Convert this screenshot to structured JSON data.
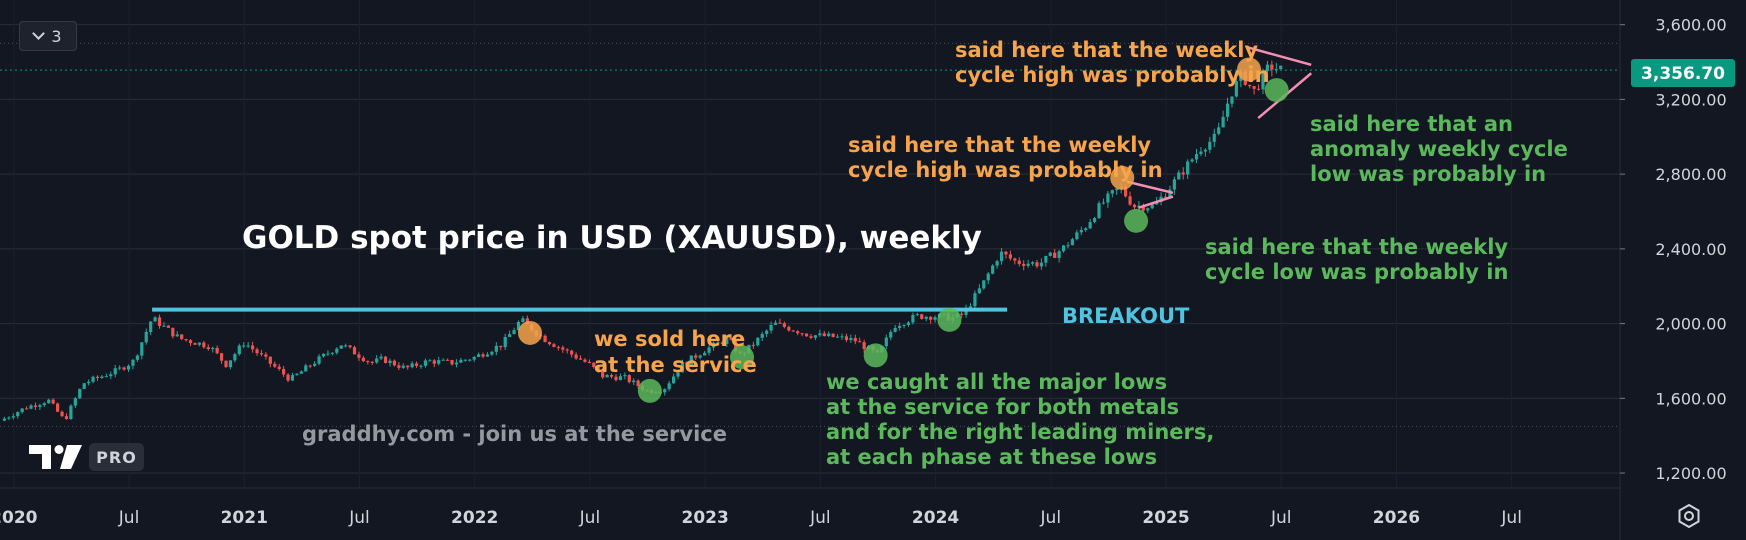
{
  "toolbar": {
    "collapse_count": "3"
  },
  "branding": {
    "logo_badge": "PRO",
    "logo_text": "TV"
  },
  "annotations": {
    "title": "GOLD spot price in USD (XAUUSD), weekly",
    "breakout": "BREAKOUT",
    "watermark": "graddhy.com - join us at the service",
    "sold": [
      "we sold here",
      "at the service"
    ],
    "caught": [
      "we caught all the major lows",
      "at the service for both metals",
      "and for the right leading miners,",
      "at each phase at these lows"
    ],
    "high1": [
      "said here that the weekly",
      "cycle high was probably in"
    ],
    "low1": [
      "said here that the weekly",
      "cycle low was probably in"
    ],
    "high2": [
      "said here that the weekly",
      "cycle high was probably in"
    ],
    "low2": [
      "said here that an",
      "anomaly weekly cycle",
      "low was probably in"
    ]
  },
  "colors": {
    "background": "#131722",
    "up": "#26a69a",
    "down": "#ef5350",
    "breakout_line": "#4fc3e0",
    "orange": "#f7a44a",
    "green": "#5cb85c",
    "pink": "#f48fb1",
    "price_label_bg": "#089981"
  },
  "chart_data": {
    "type": "candlestick",
    "symbol": "XAUUSD",
    "timeframe": "weekly",
    "title": "GOLD spot price in USD (XAUUSD), weekly",
    "current_price": "3,356.70",
    "ylim": [
      1120,
      3700
    ],
    "y_ticks": [
      {
        "value": 1200,
        "label": "1,200.00"
      },
      {
        "value": 1600,
        "label": "1,600.00"
      },
      {
        "value": 2000,
        "label": "2,000.00"
      },
      {
        "value": 2400,
        "label": "2,400.00"
      },
      {
        "value": 2800,
        "label": "2,800.00"
      },
      {
        "value": 3200,
        "label": "3,200.00"
      },
      {
        "value": 3600,
        "label": "3,600.00"
      }
    ],
    "x_range": [
      2019.94,
      2026.97
    ],
    "x_ticks": [
      {
        "t": 2020.0,
        "label": "2020",
        "year": true
      },
      {
        "t": 2020.5,
        "label": "Jul",
        "year": false
      },
      {
        "t": 2021.0,
        "label": "2021",
        "year": true
      },
      {
        "t": 2021.5,
        "label": "Jul",
        "year": false
      },
      {
        "t": 2022.0,
        "label": "2022",
        "year": true
      },
      {
        "t": 2022.5,
        "label": "Jul",
        "year": false
      },
      {
        "t": 2023.0,
        "label": "2023",
        "year": true
      },
      {
        "t": 2023.5,
        "label": "Jul",
        "year": false
      },
      {
        "t": 2024.0,
        "label": "2024",
        "year": true
      },
      {
        "t": 2024.5,
        "label": "Jul",
        "year": false
      },
      {
        "t": 2025.0,
        "label": "2025",
        "year": true
      },
      {
        "t": 2025.5,
        "label": "Jul",
        "year": false
      },
      {
        "t": 2026.0,
        "label": "2026",
        "year": true
      },
      {
        "t": 2026.5,
        "label": "Jul",
        "year": false
      }
    ],
    "price_path": [
      [
        2019.94,
        1480
      ],
      [
        2020.05,
        1550
      ],
      [
        2020.15,
        1590
      ],
      [
        2020.22,
        1480
      ],
      [
        2020.3,
        1680
      ],
      [
        2020.45,
        1750
      ],
      [
        2020.52,
        1800
      ],
      [
        2020.6,
        2030
      ],
      [
        2020.72,
        1920
      ],
      [
        2020.85,
        1880
      ],
      [
        2020.92,
        1780
      ],
      [
        2021.0,
        1900
      ],
      [
        2021.1,
        1800
      ],
      [
        2021.2,
        1700
      ],
      [
        2021.3,
        1790
      ],
      [
        2021.42,
        1890
      ],
      [
        2021.55,
        1790
      ],
      [
        2021.6,
        1810
      ],
      [
        2021.7,
        1760
      ],
      [
        2021.8,
        1800
      ],
      [
        2021.9,
        1790
      ],
      [
        2022.0,
        1820
      ],
      [
        2022.12,
        1890
      ],
      [
        2022.2,
        2020
      ],
      [
        2022.3,
        1920
      ],
      [
        2022.4,
        1850
      ],
      [
        2022.5,
        1780
      ],
      [
        2022.55,
        1720
      ],
      [
        2022.65,
        1710
      ],
      [
        2022.75,
        1640
      ],
      [
        2022.82,
        1650
      ],
      [
        2022.9,
        1780
      ],
      [
        2023.0,
        1860
      ],
      [
        2023.1,
        1920
      ],
      [
        2023.15,
        1830
      ],
      [
        2023.2,
        1880
      ],
      [
        2023.3,
        2000
      ],
      [
        2023.38,
        1970
      ],
      [
        2023.45,
        1940
      ],
      [
        2023.55,
        1930
      ],
      [
        2023.65,
        1910
      ],
      [
        2023.75,
        1830
      ],
      [
        2023.82,
        1990
      ],
      [
        2023.92,
        2040
      ],
      [
        2024.0,
        2040
      ],
      [
        2024.08,
        2030
      ],
      [
        2024.12,
        2050
      ],
      [
        2024.2,
        2200
      ],
      [
        2024.28,
        2380
      ],
      [
        2024.35,
        2330
      ],
      [
        2024.45,
        2320
      ],
      [
        2024.55,
        2400
      ],
      [
        2024.65,
        2520
      ],
      [
        2024.72,
        2640
      ],
      [
        2024.8,
        2730
      ],
      [
        2024.86,
        2630
      ],
      [
        2024.95,
        2630
      ],
      [
        2025.05,
        2780
      ],
      [
        2025.15,
        2940
      ],
      [
        2025.22,
        3000
      ],
      [
        2025.28,
        3230
      ],
      [
        2025.33,
        3330
      ],
      [
        2025.38,
        3240
      ],
      [
        2025.45,
        3380
      ],
      [
        2025.5,
        3356.7
      ]
    ],
    "breakout_level": 2075
  }
}
